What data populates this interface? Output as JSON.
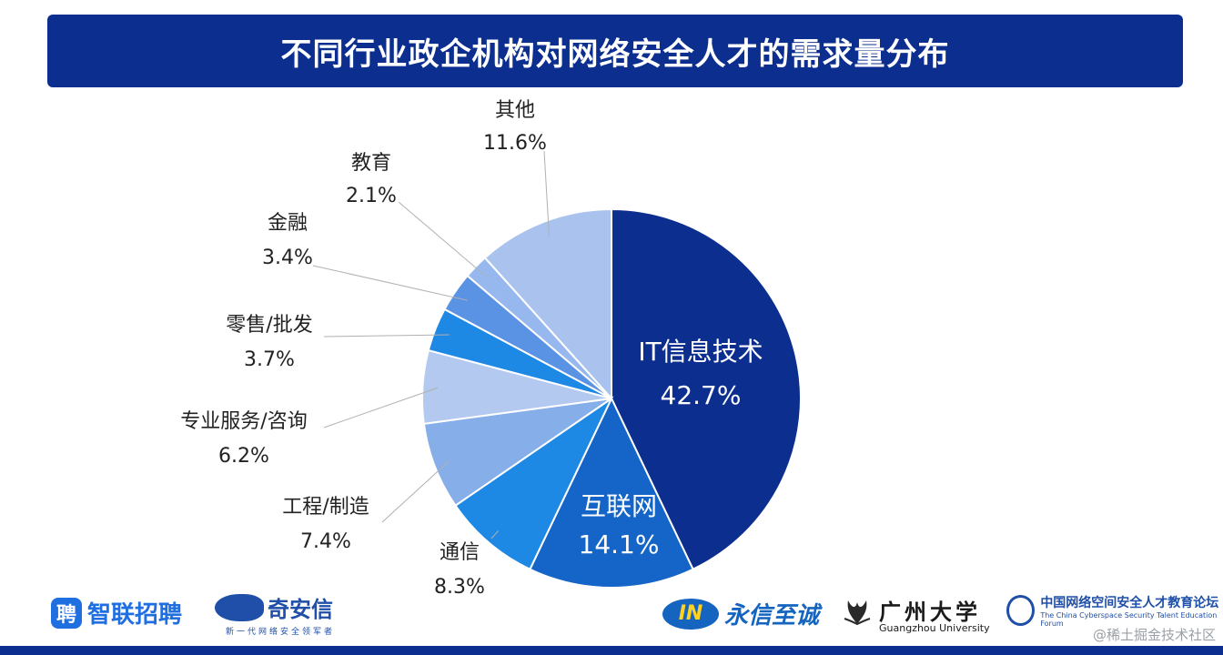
{
  "page": {
    "title": "不同行业政企机构对网络安全人才的需求量分布"
  },
  "chart_data": {
    "type": "pie",
    "title": "不同行业政企机构对网络安全人才的需求量分布",
    "start_angle_deg": 0,
    "direction": "clockwise",
    "slices": [
      {
        "category": "IT信息技术",
        "value": 42.7,
        "label": "42.7%",
        "color": "#0b2e8f",
        "label_inside": true
      },
      {
        "category": "互联网",
        "value": 14.1,
        "label": "14.1%",
        "color": "#1565c8",
        "label_inside": true
      },
      {
        "category": "通信",
        "value": 8.3,
        "label": "8.3%",
        "color": "#1e88e5",
        "label_inside": false
      },
      {
        "category": "工程/制造",
        "value": 7.4,
        "label": "7.4%",
        "color": "#86aee9",
        "label_inside": false
      },
      {
        "category": "专业服务/咨询",
        "value": 6.2,
        "label": "6.2%",
        "color": "#b3c9f0",
        "label_inside": false
      },
      {
        "category": "零售/批发",
        "value": 3.7,
        "label": "3.7%",
        "color": "#1e88e5",
        "label_inside": false
      },
      {
        "category": "金融",
        "value": 3.4,
        "label": "3.4%",
        "color": "#5a92e4",
        "label_inside": false
      },
      {
        "category": "教育",
        "value": 2.1,
        "label": "2.1%",
        "color": "#97b8ee",
        "label_inside": false
      },
      {
        "category": "其他",
        "value": 11.6,
        "label": "11.6%",
        "color": "#a9c2ee",
        "label_inside": false
      }
    ]
  },
  "logos": {
    "zhaopin": {
      "mark": "聘",
      "text": "智联招聘"
    },
    "qianxin": {
      "text": "奇安信",
      "sub": "新一代网络安全领军者"
    },
    "yongxin": {
      "mark": "IN",
      "text": "永信至诚"
    },
    "gzhu": {
      "cn": "广州大学",
      "en": "Guangzhou University"
    },
    "forum": {
      "cn": "中国网络空间安全人才教育论坛",
      "en": "The China Cyberspace Security Talent Education Forum"
    }
  },
  "watermark": "@稀土掘金技术社区"
}
